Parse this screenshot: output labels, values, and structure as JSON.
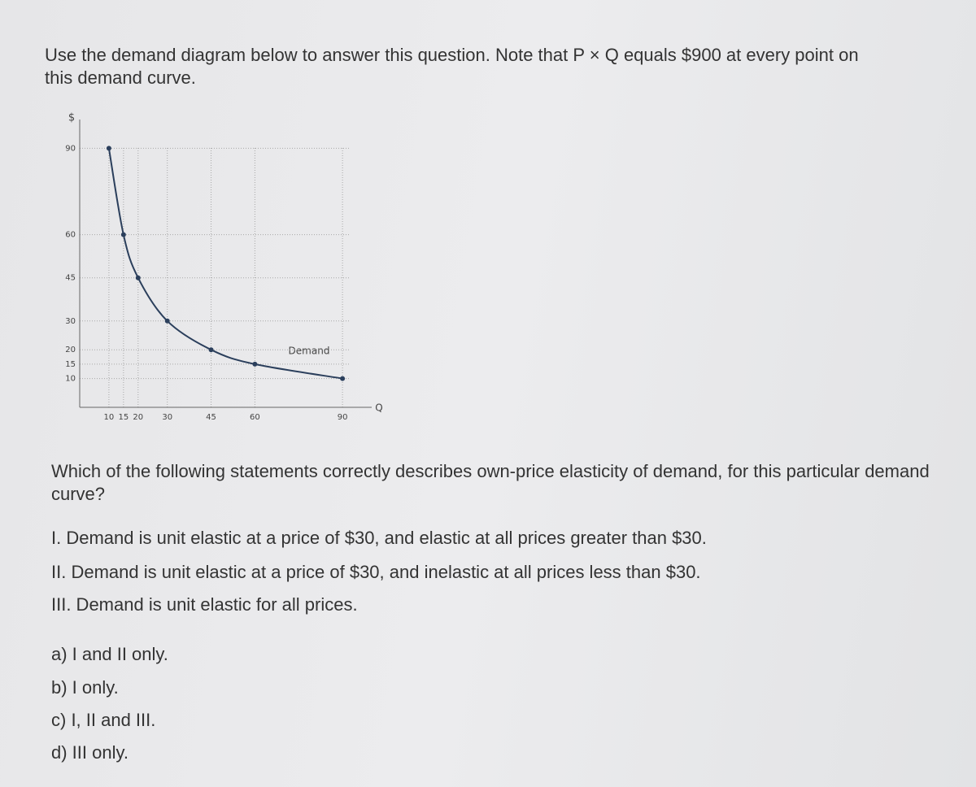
{
  "question": "Use the demand diagram below to answer this question. Note that P × Q equals $900 at every point on this demand curve.",
  "chart_data": {
    "type": "line",
    "y_label": "$",
    "x_label": "Q",
    "annotation": "Demand",
    "x": [
      10,
      15,
      20,
      30,
      45,
      60,
      90
    ],
    "values": [
      90,
      60,
      45,
      30,
      20,
      15,
      10
    ],
    "color": "#2b3f5c",
    "xlim": [
      0,
      100
    ],
    "ylim": [
      0,
      100
    ],
    "xticks": [
      10,
      15,
      20,
      30,
      45,
      60,
      90
    ],
    "yticks": [
      10,
      15,
      20,
      30,
      45,
      60,
      90
    ],
    "grid": true
  },
  "prompt": "Which of the following statements correctly describes own-price elasticity of demand, for this particular demand curve?",
  "statements": [
    "I. Demand is unit elastic at a price of $30, and elastic at all prices greater than $30.",
    "II. Demand is unit elastic at a price of $30, and inelastic at all prices less than $30.",
    "III. Demand is unit elastic for all prices."
  ],
  "options": [
    "a) I and II only.",
    "b) I only.",
    "c) I, II and III.",
    "d) III only."
  ]
}
